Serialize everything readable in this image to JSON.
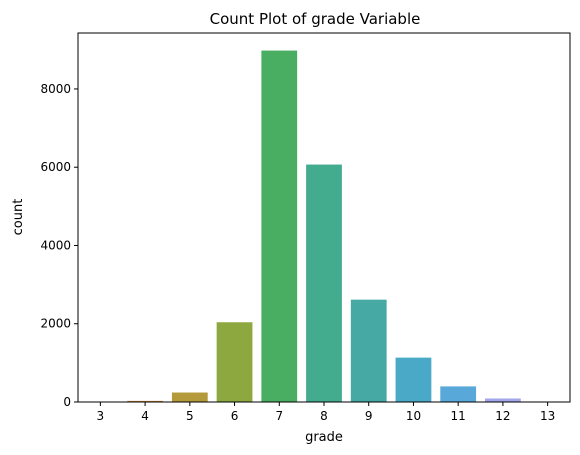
{
  "chart_data": {
    "type": "bar",
    "title": "Count Plot of grade Variable",
    "xlabel": "grade",
    "ylabel": "count",
    "categories": [
      "3",
      "4",
      "5",
      "6",
      "7",
      "8",
      "9",
      "10",
      "11",
      "12",
      "13"
    ],
    "values": [
      3,
      29,
      242,
      2038,
      8981,
      6068,
      2615,
      1134,
      399,
      90,
      13
    ],
    "colors": [
      "#e8808c",
      "#c8843a",
      "#b59a3b",
      "#8da83e",
      "#4aae62",
      "#44ac8e",
      "#46a9a3",
      "#4aa9c6",
      "#58a8da",
      "#a4a6ea",
      "#e594d5"
    ],
    "ylim": [
      0,
      9430
    ],
    "yticks": [
      0,
      2000,
      4000,
      6000,
      8000
    ],
    "grid": false
  }
}
